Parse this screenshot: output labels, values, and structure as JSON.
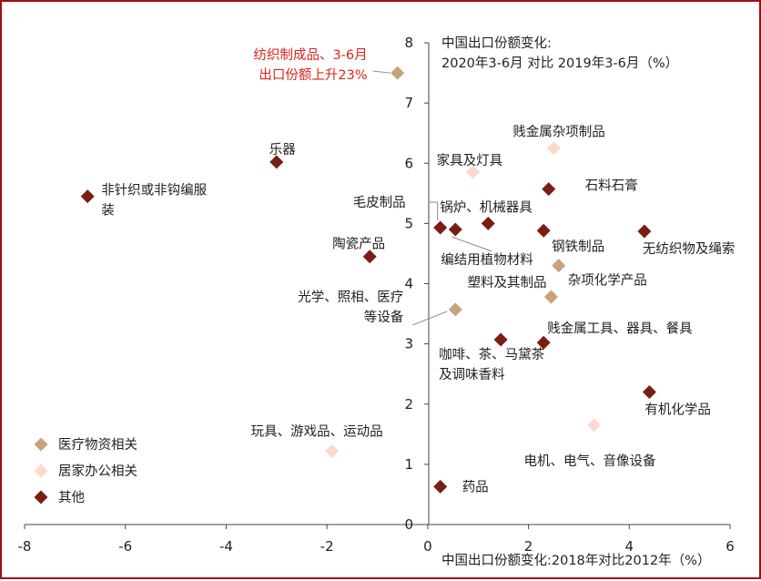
{
  "chart_data": {
    "type": "scatter",
    "title_lines": [
      "中国出口份额变化:",
      "2020年3-6月 对比 2019年3-6月（%）"
    ],
    "xlabel": "中国出口份额变化:2018年对比2012年（%）",
    "xlim": [
      -8,
      6
    ],
    "ylim": [
      0,
      8
    ],
    "xticks": [
      -8,
      -6,
      -4,
      -2,
      0,
      2,
      4,
      6
    ],
    "yticks": [
      0,
      1,
      2,
      3,
      4,
      5,
      6,
      7,
      8
    ],
    "grid": false,
    "legend_position": "bottom-left",
    "colors": {
      "medical": "#c8a27a",
      "home_office": "#fbd9cc",
      "other": "#7a1e12",
      "highlight": "#e0221e",
      "frame": "#a01010"
    },
    "series": [
      {
        "name": "医疗物资相关",
        "key": "medical",
        "points": [
          {
            "x": -0.6,
            "y": 7.5,
            "label_lines": [
              "纺织制成品、3-6月",
              "出口份额上升23%"
            ],
            "highlight": true
          },
          {
            "x": 0.55,
            "y": 3.57,
            "label_lines": [
              "光学、照相、医疗",
              "等设备"
            ]
          },
          {
            "x": 2.45,
            "y": 3.78,
            "label_lines": [
              "塑料及其制品"
            ]
          },
          {
            "x": 2.6,
            "y": 4.3,
            "label_lines": [
              "杂项化学产品"
            ]
          }
        ]
      },
      {
        "name": "居家办公相关",
        "key": "home_office",
        "points": [
          {
            "x": 0.9,
            "y": 5.85,
            "label_lines": [
              "家具及灯具"
            ]
          },
          {
            "x": 2.5,
            "y": 6.25,
            "label_lines": [
              "贱金属杂项制品"
            ]
          },
          {
            "x": 3.3,
            "y": 1.65,
            "label_lines": [
              "电机、电气、音像设备"
            ]
          },
          {
            "x": -1.9,
            "y": 1.22,
            "label_lines": [
              "玩具、游戏品、运动品"
            ]
          }
        ]
      },
      {
        "name": "其他",
        "key": "other",
        "points": [
          {
            "x": -6.75,
            "y": 5.45,
            "label_lines": [
              "非针织或非钩编服",
              "装"
            ]
          },
          {
            "x": -3.0,
            "y": 6.02,
            "label_lines": [
              "乐器"
            ]
          },
          {
            "x": -1.15,
            "y": 4.45,
            "label_lines": [
              "陶瓷产品"
            ]
          },
          {
            "x": 0.25,
            "y": 4.93,
            "label_lines": [
              "毛皮制品"
            ]
          },
          {
            "x": 0.55,
            "y": 4.9,
            "label_lines": [
              "编结用植物材料"
            ]
          },
          {
            "x": 1.2,
            "y": 5.0,
            "label_lines": [
              "锅炉、机械器具"
            ]
          },
          {
            "x": 2.3,
            "y": 4.88,
            "label_lines": [
              "钢铁制品"
            ]
          },
          {
            "x": 2.4,
            "y": 5.57,
            "label_lines": [
              "石料石膏"
            ]
          },
          {
            "x": 4.3,
            "y": 4.87,
            "label_lines": [
              "无纺织物及绳索"
            ]
          },
          {
            "x": 1.45,
            "y": 3.07,
            "label_lines": [
              "咖啡、茶、马黛茶",
              "及调味香料"
            ]
          },
          {
            "x": 2.3,
            "y": 3.02,
            "label_lines": [
              "贱金属工具、器具、餐具"
            ]
          },
          {
            "x": 4.4,
            "y": 2.2,
            "label_lines": [
              "有机化学品"
            ]
          },
          {
            "x": 0.25,
            "y": 0.63,
            "label_lines": [
              "药品"
            ]
          }
        ]
      }
    ]
  }
}
